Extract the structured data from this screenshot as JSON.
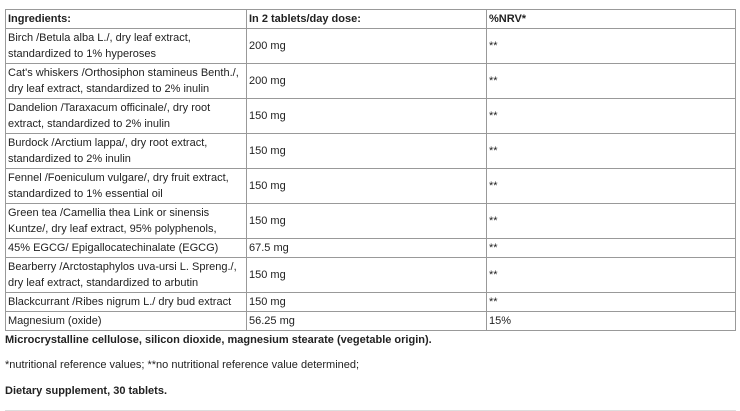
{
  "table": {
    "headers": [
      "Ingredients:",
      "In 2 tablets/day dose:",
      "%NRV*"
    ],
    "rows": [
      {
        "ingredient": "Birch /Betula alba L./, dry leaf extract, standardized to 1% hyperoses",
        "dose": "200 mg",
        "nrv": "**"
      },
      {
        "ingredient": "Cat's whiskers /Orthosiphon stamineus Benth./, dry leaf extract, standardized to 2% inulin",
        "dose": "200 mg",
        "nrv": "**"
      },
      {
        "ingredient": "Dandelion /Taraxacum officinale/, dry root extract, standardized to 2% inulin",
        "dose": "150 mg",
        "nrv": "**"
      },
      {
        "ingredient": "Burdock /Arctium lappa/, dry root extract, standardized to 2% inulin",
        "dose": "150 mg",
        "nrv": "**"
      },
      {
        "ingredient": "Fennel /Foeniculum vulgare/, dry fruit extract, standardized to 1% essential oil",
        "dose": "150 mg",
        "nrv": "**"
      },
      {
        "ingredient": "Green tea /Camellia thea Link or sinensis Kuntze/, dry leaf extract, 95% polyphenols,",
        "dose": "150 mg",
        "nrv": "**"
      },
      {
        "ingredient": "45% EGCG/ Epigallocatechinalate (EGCG)",
        "dose": "67.5 mg",
        "nrv": "**"
      },
      {
        "ingredient": "Bearberry /Arctostaphylos uva-ursi L. Spreng./, dry leaf extract, standardized to arbutin",
        "dose": "150 mg",
        "nrv": "**"
      },
      {
        "ingredient": "Blackcurrant /Ribes nigrum L./ dry bud extract",
        "dose": "150 mg",
        "nrv": "**"
      },
      {
        "ingredient": "Magnesium (oxide)",
        "dose": "56.25 mg",
        "nrv": "15%"
      }
    ]
  },
  "excipients": "Microcrystalline cellulose, silicon dioxide, magnesium stearate (vegetable origin).",
  "footnote": "*nutritional reference values; **no nutritional reference value determined;",
  "product": "Dietary supplement, 30 tablets."
}
